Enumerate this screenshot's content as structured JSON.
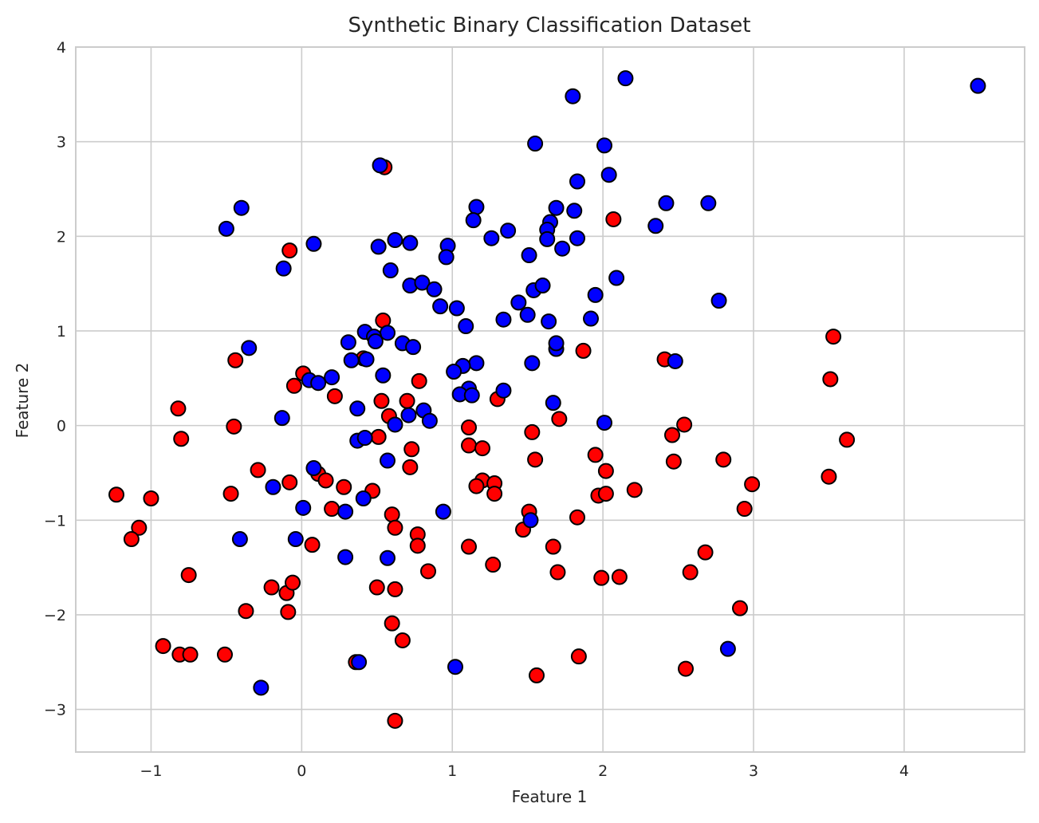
{
  "chart_data": {
    "type": "scatter",
    "title": "Synthetic Binary Classification Dataset",
    "xlabel": "Feature 1",
    "ylabel": "Feature 2",
    "xlim": [
      -1.5,
      4.8
    ],
    "ylim": [
      -3.45,
      4.0
    ],
    "xticks": [
      -1,
      0,
      1,
      2,
      3,
      4
    ],
    "yticks": [
      -3,
      -2,
      -1,
      0,
      1,
      2,
      3,
      4
    ],
    "grid": true,
    "legend": "none",
    "series": [
      {
        "color": "#ff0000",
        "points": [
          [
            0.55,
            2.73
          ],
          [
            -0.08,
            1.85
          ],
          [
            2.07,
            2.18
          ],
          [
            0.54,
            1.11
          ],
          [
            0.41,
            0.71
          ],
          [
            -0.44,
            0.69
          ],
          [
            1.87,
            0.79
          ],
          [
            2.41,
            0.7
          ],
          [
            3.53,
            0.94
          ],
          [
            3.51,
            0.49
          ],
          [
            0.01,
            0.55
          ],
          [
            -0.05,
            0.42
          ],
          [
            0.22,
            0.31
          ],
          [
            0.53,
            0.26
          ],
          [
            0.7,
            0.26
          ],
          [
            0.78,
            0.47
          ],
          [
            1.3,
            0.28
          ],
          [
            1.71,
            0.07
          ],
          [
            0.58,
            0.1
          ],
          [
            -0.82,
            0.18
          ],
          [
            -0.8,
            -0.14
          ],
          [
            -0.45,
            -0.01
          ],
          [
            0.51,
            -0.12
          ],
          [
            0.73,
            -0.25
          ],
          [
            1.11,
            -0.02
          ],
          [
            1.11,
            -0.21
          ],
          [
            1.2,
            -0.24
          ],
          [
            1.53,
            -0.07
          ],
          [
            1.55,
            -0.36
          ],
          [
            1.95,
            -0.31
          ],
          [
            2.46,
            -0.1
          ],
          [
            2.54,
            0.01
          ],
          [
            2.47,
            -0.38
          ],
          [
            3.62,
            -0.15
          ],
          [
            2.8,
            -0.36
          ],
          [
            2.99,
            -0.62
          ],
          [
            3.5,
            -0.54
          ],
          [
            -0.29,
            -0.47
          ],
          [
            -0.47,
            -0.72
          ],
          [
            -0.08,
            -0.6
          ],
          [
            0.11,
            -0.51
          ],
          [
            0.16,
            -0.58
          ],
          [
            0.28,
            -0.65
          ],
          [
            0.47,
            -0.69
          ],
          [
            0.72,
            -0.44
          ],
          [
            1.2,
            -0.58
          ],
          [
            1.16,
            -0.64
          ],
          [
            1.28,
            -0.61
          ],
          [
            1.28,
            -0.72
          ],
          [
            1.97,
            -0.74
          ],
          [
            2.02,
            -0.72
          ],
          [
            2.02,
            -0.48
          ],
          [
            2.21,
            -0.68
          ],
          [
            -1.23,
            -0.73
          ],
          [
            -1.0,
            -0.77
          ],
          [
            -1.08,
            -1.08
          ],
          [
            -1.13,
            -1.2
          ],
          [
            0.2,
            -0.88
          ],
          [
            0.6,
            -0.94
          ],
          [
            0.62,
            -1.08
          ],
          [
            0.77,
            -1.15
          ],
          [
            0.77,
            -1.27
          ],
          [
            1.51,
            -0.91
          ],
          [
            1.47,
            -1.1
          ],
          [
            1.83,
            -0.97
          ],
          [
            2.94,
            -0.88
          ],
          [
            0.07,
            -1.26
          ],
          [
            1.11,
            -1.28
          ],
          [
            1.67,
            -1.28
          ],
          [
            1.27,
            -1.47
          ],
          [
            2.68,
            -1.34
          ],
          [
            -0.75,
            -1.58
          ],
          [
            -0.2,
            -1.71
          ],
          [
            -0.1,
            -1.77
          ],
          [
            -0.06,
            -1.66
          ],
          [
            0.5,
            -1.71
          ],
          [
            0.62,
            -1.73
          ],
          [
            0.84,
            -1.54
          ],
          [
            1.7,
            -1.55
          ],
          [
            1.99,
            -1.61
          ],
          [
            2.11,
            -1.6
          ],
          [
            2.58,
            -1.55
          ],
          [
            -0.37,
            -1.96
          ],
          [
            -0.09,
            -1.97
          ],
          [
            0.6,
            -2.09
          ],
          [
            0.67,
            -2.27
          ],
          [
            2.91,
            -1.93
          ],
          [
            -0.92,
            -2.33
          ],
          [
            -0.81,
            -2.42
          ],
          [
            -0.74,
            -2.42
          ],
          [
            -0.51,
            -2.42
          ],
          [
            0.36,
            -2.5
          ],
          [
            1.84,
            -2.44
          ],
          [
            1.56,
            -2.64
          ],
          [
            2.55,
            -2.57
          ],
          [
            0.62,
            -3.12
          ]
        ]
      },
      {
        "color": "#0000ff",
        "points": [
          [
            2.15,
            3.67
          ],
          [
            1.8,
            3.48
          ],
          [
            4.49,
            3.59
          ],
          [
            1.55,
            2.98
          ],
          [
            2.01,
            2.96
          ],
          [
            0.52,
            2.75
          ],
          [
            2.04,
            2.65
          ],
          [
            1.83,
            2.58
          ],
          [
            -0.4,
            2.3
          ],
          [
            1.16,
            2.31
          ],
          [
            1.69,
            2.3
          ],
          [
            1.14,
            2.17
          ],
          [
            1.65,
            2.15
          ],
          [
            1.81,
            2.27
          ],
          [
            2.42,
            2.35
          ],
          [
            2.7,
            2.35
          ],
          [
            -0.5,
            2.08
          ],
          [
            1.63,
            2.07
          ],
          [
            1.37,
            2.06
          ],
          [
            2.35,
            2.11
          ],
          [
            0.08,
            1.92
          ],
          [
            0.51,
            1.89
          ],
          [
            0.62,
            1.96
          ],
          [
            0.72,
            1.93
          ],
          [
            1.26,
            1.98
          ],
          [
            1.63,
            1.97
          ],
          [
            1.83,
            1.98
          ],
          [
            0.97,
            1.9
          ],
          [
            0.96,
            1.78
          ],
          [
            1.51,
            1.8
          ],
          [
            1.73,
            1.87
          ],
          [
            -0.12,
            1.66
          ],
          [
            0.59,
            1.64
          ],
          [
            2.09,
            1.56
          ],
          [
            0.72,
            1.48
          ],
          [
            0.8,
            1.51
          ],
          [
            0.88,
            1.44
          ],
          [
            1.54,
            1.43
          ],
          [
            1.6,
            1.48
          ],
          [
            1.95,
            1.38
          ],
          [
            0.92,
            1.26
          ],
          [
            1.03,
            1.24
          ],
          [
            1.44,
            1.3
          ],
          [
            1.5,
            1.17
          ],
          [
            1.34,
            1.12
          ],
          [
            1.64,
            1.1
          ],
          [
            1.92,
            1.13
          ],
          [
            2.77,
            1.32
          ],
          [
            1.09,
            1.05
          ],
          [
            0.42,
            0.99
          ],
          [
            0.57,
            0.98
          ],
          [
            0.48,
            0.94
          ],
          [
            0.31,
            0.88
          ],
          [
            0.49,
            0.89
          ],
          [
            0.67,
            0.87
          ],
          [
            0.74,
            0.83
          ],
          [
            1.69,
            0.81
          ],
          [
            1.69,
            0.87
          ],
          [
            -0.35,
            0.82
          ],
          [
            0.33,
            0.69
          ],
          [
            0.43,
            0.7
          ],
          [
            1.53,
            0.66
          ],
          [
            1.16,
            0.66
          ],
          [
            1.07,
            0.63
          ],
          [
            1.01,
            0.57
          ],
          [
            2.48,
            0.68
          ],
          [
            0.54,
            0.53
          ],
          [
            0.05,
            0.48
          ],
          [
            0.11,
            0.45
          ],
          [
            0.2,
            0.51
          ],
          [
            1.11,
            0.39
          ],
          [
            1.05,
            0.33
          ],
          [
            1.13,
            0.32
          ],
          [
            1.34,
            0.37
          ],
          [
            1.67,
            0.24
          ],
          [
            0.37,
            0.18
          ],
          [
            0.71,
            0.11
          ],
          [
            0.81,
            0.16
          ],
          [
            0.85,
            0.05
          ],
          [
            0.62,
            0.01
          ],
          [
            2.01,
            0.03
          ],
          [
            -0.13,
            0.08
          ],
          [
            0.37,
            -0.16
          ],
          [
            0.42,
            -0.13
          ],
          [
            0.57,
            -0.37
          ],
          [
            0.08,
            -0.45
          ],
          [
            -0.19,
            -0.65
          ],
          [
            0.41,
            -0.77
          ],
          [
            0.01,
            -0.87
          ],
          [
            0.29,
            -0.91
          ],
          [
            0.94,
            -0.91
          ],
          [
            1.52,
            -1.0
          ],
          [
            -0.41,
            -1.2
          ],
          [
            -0.04,
            -1.2
          ],
          [
            0.29,
            -1.39
          ],
          [
            0.57,
            -1.4
          ],
          [
            2.83,
            -2.36
          ],
          [
            0.38,
            -2.5
          ],
          [
            1.02,
            -2.55
          ],
          [
            -0.27,
            -2.77
          ]
        ]
      }
    ]
  }
}
